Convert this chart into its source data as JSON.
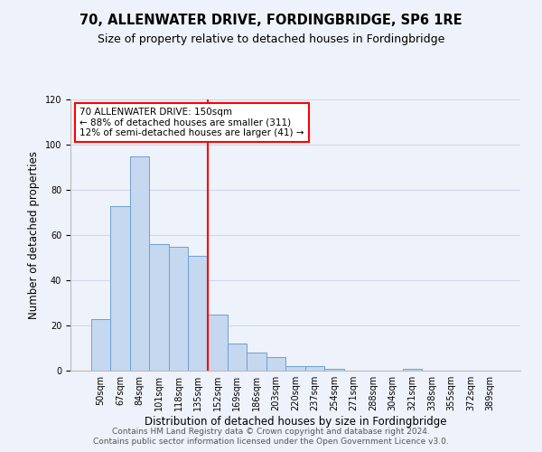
{
  "title": "70, ALLENWATER DRIVE, FORDINGBRIDGE, SP6 1RE",
  "subtitle": "Size of property relative to detached houses in Fordingbridge",
  "xlabel": "Distribution of detached houses by size in Fordingbridge",
  "ylabel": "Number of detached properties",
  "bar_labels": [
    "50sqm",
    "67sqm",
    "84sqm",
    "101sqm",
    "118sqm",
    "135sqm",
    "152sqm",
    "169sqm",
    "186sqm",
    "203sqm",
    "220sqm",
    "237sqm",
    "254sqm",
    "271sqm",
    "288sqm",
    "304sqm",
    "321sqm",
    "338sqm",
    "355sqm",
    "372sqm",
    "389sqm"
  ],
  "bar_heights": [
    23,
    73,
    95,
    56,
    55,
    51,
    25,
    12,
    8,
    6,
    2,
    2,
    1,
    0,
    0,
    0,
    1,
    0,
    0,
    0,
    0
  ],
  "bar_color": "#c5d8f0",
  "bar_edge_color": "#6ca0d4",
  "bar_width": 1.0,
  "vline_x_index": 6,
  "vline_color": "red",
  "vline_linewidth": 1.5,
  "ylim": [
    0,
    120
  ],
  "yticks": [
    0,
    20,
    40,
    60,
    80,
    100,
    120
  ],
  "annotation_title": "70 ALLENWATER DRIVE: 150sqm",
  "annotation_line1": "← 88% of detached houses are smaller (311)",
  "annotation_line2": "12% of semi-detached houses are larger (41) →",
  "annotation_box_color": "white",
  "annotation_box_edge_color": "red",
  "grid_color": "#d0d8e8",
  "background_color": "#eef2fa",
  "footer1": "Contains HM Land Registry data © Crown copyright and database right 2024.",
  "footer2": "Contains public sector information licensed under the Open Government Licence v3.0.",
  "title_fontsize": 10.5,
  "subtitle_fontsize": 9,
  "xlabel_fontsize": 8.5,
  "ylabel_fontsize": 8.5,
  "tick_fontsize": 7,
  "footer_fontsize": 6.5,
  "annotation_fontsize": 7.5
}
